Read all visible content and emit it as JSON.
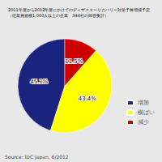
{
  "chart_data": {
    "type": "pie",
    "title": "2011年度から2012年度にかけてのディザスターリカバリー対策予算増減予定",
    "subtitle": "（従業員規模1,000人以上の企業、344社の回答集計）",
    "categories": [
      "増加",
      "横ばい",
      "減少"
    ],
    "values": [
      45.1,
      43.4,
      11.5
    ],
    "value_labels": [
      "45.1%",
      "43.4%",
      "11.5%"
    ],
    "colors": [
      "#1a237e",
      "#ffff00",
      "#cc0000"
    ],
    "data_labels": true,
    "legend": "right",
    "annotations": [
      "Source: IDC Japan, 6/2012"
    ]
  }
}
